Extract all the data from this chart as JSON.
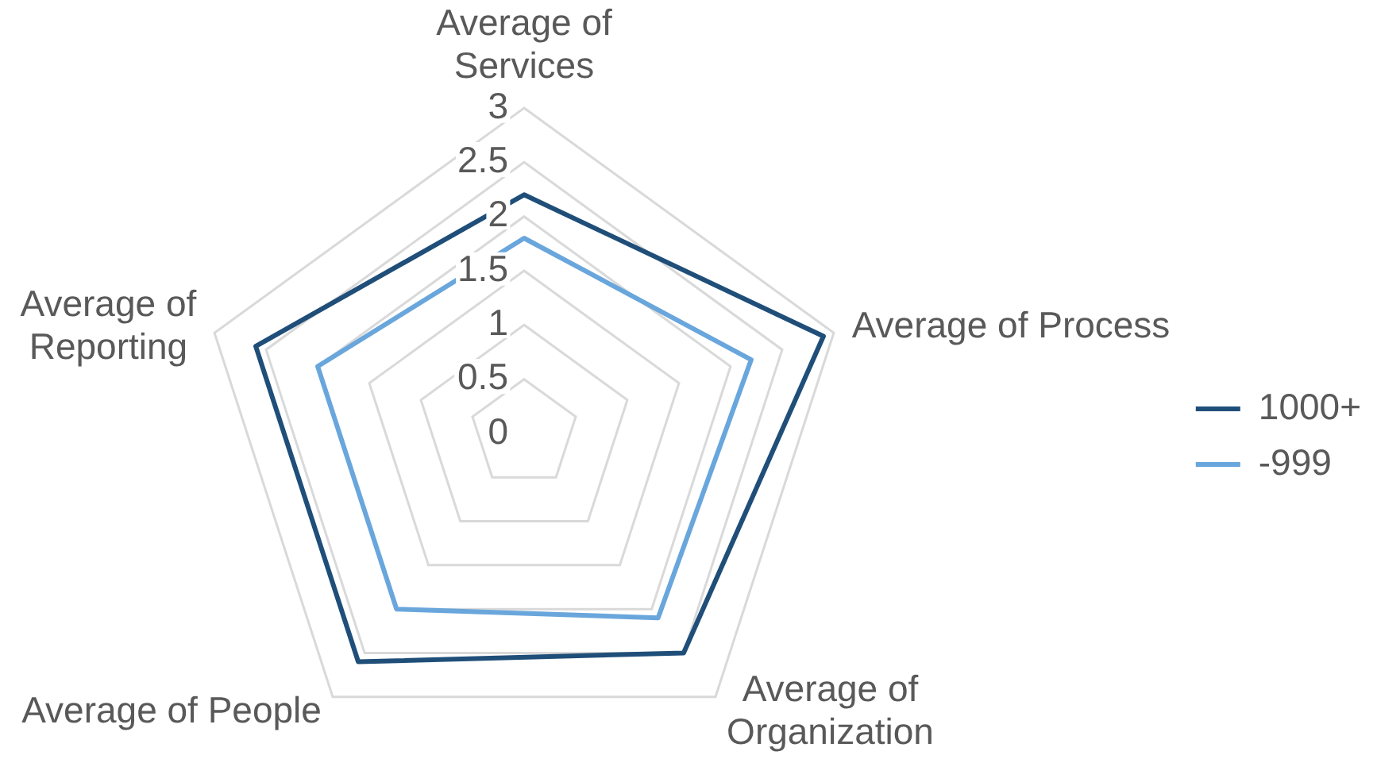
{
  "chart_data": {
    "type": "radar",
    "categories": [
      "Average of\nServices",
      "Average of Process",
      "Average of\nOrganization",
      "Average of People",
      "Average of\nReporting"
    ],
    "series": [
      {
        "name": "1000+",
        "color": "#1f4e79",
        "values": [
          2.2,
          2.9,
          2.5,
          2.6,
          2.6
        ]
      },
      {
        "name": "-999",
        "color": "#69a6dc",
        "values": [
          1.8,
          2.2,
          2.1,
          2.0,
          2.0
        ]
      }
    ],
    "ylim": [
      0,
      3
    ],
    "yticks": [
      0,
      0.5,
      1,
      1.5,
      2,
      2.5,
      3
    ],
    "grid": true,
    "legend": "right",
    "marker": "none",
    "line_style": "solid"
  }
}
